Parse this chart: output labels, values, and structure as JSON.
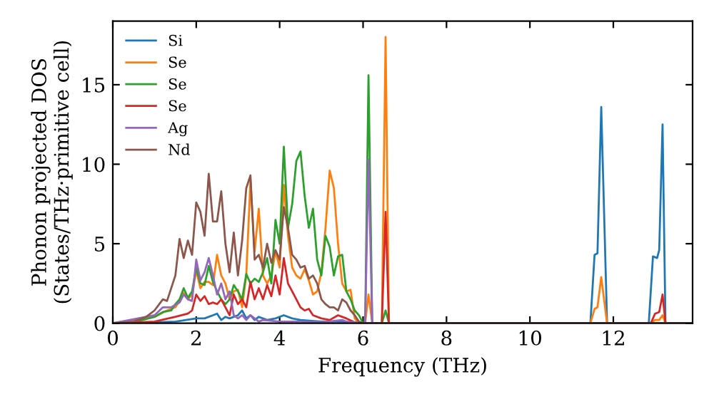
{
  "chart_data": {
    "type": "line",
    "xlabel": "Frequency (THz)",
    "ylabel": "Phonon projected DOS\n(States/THz·primitive cell)",
    "xlim": [
      0,
      13.9
    ],
    "ylim": [
      0,
      19
    ],
    "xticks": [
      0,
      2,
      4,
      6,
      8,
      10,
      12
    ],
    "yticks": [
      0,
      5,
      10,
      15
    ],
    "grid": false,
    "legend": "top left",
    "marker": "none",
    "line_style": "solid",
    "series": [
      {
        "name": "Si",
        "color": "#1f77b4",
        "x": [
          0,
          1.0,
          1.5,
          2.0,
          2.2,
          2.4,
          2.5,
          2.6,
          2.7,
          2.8,
          3.0,
          3.1,
          3.2,
          3.3,
          3.4,
          3.5,
          3.7,
          3.9,
          4.1,
          4.3,
          4.5,
          5.0,
          5.5,
          6.0,
          11.45,
          11.55,
          11.62,
          11.71,
          11.85,
          12.85,
          12.95,
          13.05,
          13.1,
          13.18,
          13.25,
          13.9
        ],
        "values": [
          0,
          0.05,
          0.1,
          0.3,
          0.3,
          0.5,
          0.6,
          0.2,
          0.4,
          0.3,
          0.5,
          0.8,
          0.3,
          0.5,
          0.2,
          0.4,
          0.2,
          0.3,
          0.5,
          0.3,
          0.2,
          0.1,
          0.1,
          0,
          0,
          4.3,
          4.4,
          13.6,
          0,
          0,
          4.2,
          4.1,
          4.6,
          12.5,
          0,
          0
        ]
      },
      {
        "name": "Se",
        "color": "#ff7f0e",
        "x": [
          0,
          1.0,
          1.3,
          1.5,
          1.6,
          1.7,
          1.8,
          1.9,
          2.0,
          2.1,
          2.2,
          2.3,
          2.4,
          2.5,
          2.6,
          2.7,
          2.8,
          2.9,
          3.0,
          3.1,
          3.2,
          3.3,
          3.4,
          3.5,
          3.6,
          3.7,
          3.8,
          3.9,
          4.0,
          4.1,
          4.2,
          4.3,
          4.4,
          4.5,
          4.6,
          4.7,
          4.8,
          4.9,
          5.0,
          5.1,
          5.2,
          5.3,
          5.4,
          5.5,
          5.6,
          5.7,
          5.8,
          5.9,
          6.05,
          6.13,
          6.22,
          6.45,
          6.54,
          6.62,
          11.45,
          11.55,
          11.62,
          11.71,
          11.85,
          12.9,
          13.0,
          13.1,
          13.18,
          13.25,
          13.9
        ],
        "values": [
          0,
          0.4,
          0.8,
          1.0,
          1.4,
          1.9,
          1.5,
          1.8,
          3.3,
          2.2,
          2.6,
          2.6,
          2.4,
          4.3,
          3.0,
          2.5,
          1.5,
          2.0,
          2.1,
          1.0,
          3.0,
          9.0,
          4.5,
          7.2,
          3.0,
          2.5,
          3.0,
          4.5,
          3.5,
          8.7,
          5.5,
          3.5,
          3.0,
          2.8,
          3.4,
          2.7,
          1.8,
          2.0,
          3.2,
          6.0,
          9.6,
          8.5,
          5.0,
          2.5,
          2.0,
          2.1,
          0.3,
          0,
          0,
          1.8,
          0,
          0,
          18.0,
          0,
          0,
          0.9,
          1.0,
          2.9,
          0,
          0,
          0.2,
          0.2,
          0.5,
          0,
          0
        ]
      },
      {
        "name": "Se",
        "color": "#2ca02c",
        "x": [
          0,
          0.5,
          1.0,
          1.2,
          1.4,
          1.5,
          1.6,
          1.7,
          1.8,
          1.9,
          2.0,
          2.1,
          2.2,
          2.3,
          2.4,
          2.5,
          2.6,
          2.7,
          2.8,
          2.9,
          3.0,
          3.1,
          3.2,
          3.3,
          3.4,
          3.5,
          3.6,
          3.7,
          3.8,
          3.9,
          4.0,
          4.1,
          4.2,
          4.3,
          4.4,
          4.5,
          4.6,
          4.7,
          4.8,
          4.9,
          5.0,
          5.1,
          5.2,
          5.3,
          5.4,
          5.5,
          5.6,
          5.7,
          5.8,
          5.9,
          6.0,
          6.05,
          6.13,
          6.22,
          6.45,
          6.54,
          6.62,
          13.9
        ],
        "values": [
          0,
          0.05,
          0.4,
          0.7,
          0.8,
          1.2,
          1.5,
          2.2,
          1.6,
          2.0,
          3.5,
          2.5,
          2.4,
          3.6,
          2.6,
          2.0,
          1.5,
          1.2,
          1.5,
          2.4,
          2.0,
          1.5,
          3.1,
          2.5,
          2.8,
          2.6,
          3.2,
          4.1,
          2.5,
          6.5,
          5.0,
          11.1,
          6.0,
          7.5,
          10.2,
          10.8,
          8.0,
          6.0,
          7.2,
          4.0,
          3.0,
          5.5,
          4.8,
          3.0,
          4.2,
          4.3,
          2.0,
          1.5,
          0.8,
          0.5,
          0,
          0,
          15.6,
          0,
          0,
          0.8,
          0,
          0
        ]
      },
      {
        "name": "Se",
        "color": "#d62728",
        "x": [
          0,
          1.0,
          1.5,
          1.8,
          1.9,
          2.0,
          2.1,
          2.2,
          2.3,
          2.4,
          2.5,
          2.6,
          2.7,
          2.8,
          2.9,
          3.0,
          3.1,
          3.2,
          3.3,
          3.4,
          3.5,
          3.6,
          3.7,
          3.8,
          3.9,
          4.0,
          4.1,
          4.2,
          4.3,
          4.4,
          4.5,
          4.6,
          4.7,
          4.8,
          5.0,
          5.2,
          5.4,
          5.6,
          5.8,
          6.0,
          6.45,
          6.54,
          6.62,
          12.9,
          13.0,
          13.1,
          13.18,
          13.25,
          13.9
        ],
        "values": [
          0,
          0.1,
          0.4,
          0.6,
          0.8,
          1.8,
          1.4,
          1.7,
          1.2,
          1.3,
          1.2,
          1.5,
          1.0,
          0.5,
          1.8,
          1.2,
          1.5,
          1.0,
          2.6,
          1.5,
          2.2,
          1.5,
          2.4,
          1.7,
          3.0,
          1.8,
          4.1,
          2.5,
          2.0,
          1.5,
          1.0,
          0.8,
          0.9,
          0.5,
          0.3,
          0.2,
          0.5,
          0.3,
          0.05,
          0,
          0,
          7.0,
          0,
          0,
          0.6,
          0.7,
          1.8,
          0,
          0
        ]
      },
      {
        "name": "Ag",
        "color": "#9467bd",
        "x": [
          0,
          1.0,
          1.2,
          1.4,
          1.6,
          1.7,
          1.8,
          1.9,
          2.0,
          2.1,
          2.2,
          2.3,
          2.4,
          2.5,
          2.6,
          2.7,
          2.8,
          2.9,
          3.0,
          3.1,
          3.2,
          3.3,
          3.4,
          3.5,
          3.6,
          4.0,
          4.5,
          5.0,
          5.5,
          5.6,
          6.0,
          6.05,
          6.13,
          6.22,
          13.9
        ],
        "values": [
          0,
          0.5,
          1.0,
          1.0,
          1.3,
          1.8,
          1.5,
          1.4,
          4.0,
          2.7,
          3.2,
          4.1,
          3.0,
          1.8,
          2.5,
          1.5,
          2.0,
          0.5,
          0.3,
          0.5,
          0.2,
          0.5,
          0.3,
          0.1,
          0.2,
          0.1,
          0.1,
          0.05,
          0.2,
          0.1,
          0,
          0,
          10.3,
          0,
          0
        ]
      },
      {
        "name": "Nd",
        "color": "#8c564b",
        "x": [
          0,
          0.5,
          0.8,
          1.0,
          1.2,
          1.3,
          1.5,
          1.6,
          1.7,
          1.8,
          1.9,
          2.0,
          2.1,
          2.2,
          2.3,
          2.4,
          2.5,
          2.6,
          2.7,
          2.8,
          2.9,
          3.0,
          3.1,
          3.2,
          3.3,
          3.4,
          3.5,
          3.6,
          3.7,
          3.8,
          3.9,
          4.0,
          4.1,
          4.2,
          4.3,
          4.4,
          4.5,
          4.6,
          4.7,
          4.8,
          4.9,
          5.0,
          5.1,
          5.2,
          5.3,
          5.4,
          5.5,
          5.6,
          5.7,
          5.8,
          5.9,
          6.0,
          13.9
        ],
        "values": [
          0,
          0.1,
          0.4,
          0.8,
          1.5,
          1.4,
          3.0,
          5.3,
          4.1,
          5.2,
          4.3,
          7.6,
          7.0,
          5.5,
          9.4,
          6.4,
          6.4,
          8.3,
          5.0,
          3.2,
          5.7,
          3.0,
          5.2,
          8.5,
          9.3,
          4.0,
          4.3,
          3.5,
          5.0,
          3.8,
          4.6,
          4.0,
          7.3,
          6.0,
          4.3,
          4.0,
          3.5,
          3.6,
          2.8,
          3.0,
          2.5,
          1.5,
          1.2,
          1.0,
          1.0,
          0.8,
          1.5,
          1.3,
          0.8,
          0.5,
          0.1,
          0,
          0
        ]
      }
    ]
  }
}
